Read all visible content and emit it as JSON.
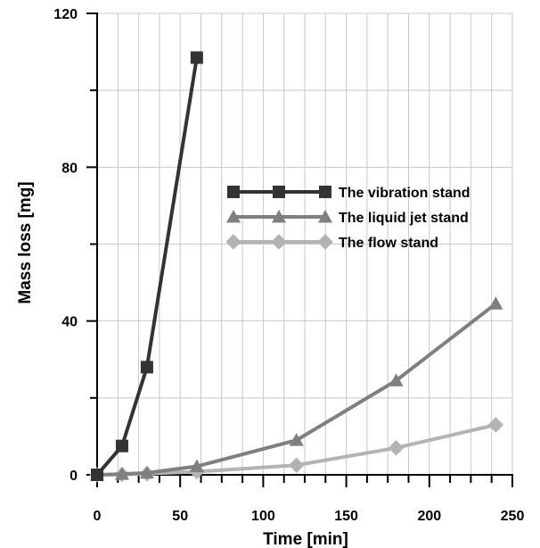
{
  "chart_data": {
    "type": "line",
    "xlabel": "Time [min]",
    "ylabel": "Mass loss  [mg]",
    "xlim": [
      0,
      250
    ],
    "ylim": [
      0,
      120
    ],
    "xticks": [
      0,
      50,
      100,
      150,
      200,
      250
    ],
    "yticks": [
      0,
      40,
      80,
      120
    ],
    "x_minor_step": 12.5,
    "y_minor_step": 20,
    "grid": true,
    "legend_position": "center-right",
    "series": [
      {
        "name": "The vibration stand",
        "color": "#333333",
        "marker": "square",
        "points": [
          [
            0,
            0
          ],
          [
            15,
            7.5
          ],
          [
            30,
            28
          ],
          [
            60,
            108.5
          ]
        ]
      },
      {
        "name": "The liquid jet  stand",
        "color": "#7f7f7f",
        "marker": "triangle",
        "points": [
          [
            0,
            0
          ],
          [
            15,
            0.2
          ],
          [
            30,
            0.5
          ],
          [
            60,
            2.2
          ],
          [
            120,
            9
          ],
          [
            180,
            24.5
          ],
          [
            240,
            44.5
          ]
        ]
      },
      {
        "name": "The flow stand",
        "color": "#b3b3b3",
        "marker": "diamond",
        "points": [
          [
            0,
            0
          ],
          [
            15,
            0.1
          ],
          [
            30,
            0.3
          ],
          [
            60,
            0.8
          ],
          [
            120,
            2.5
          ],
          [
            180,
            7
          ],
          [
            240,
            13
          ]
        ]
      }
    ]
  }
}
